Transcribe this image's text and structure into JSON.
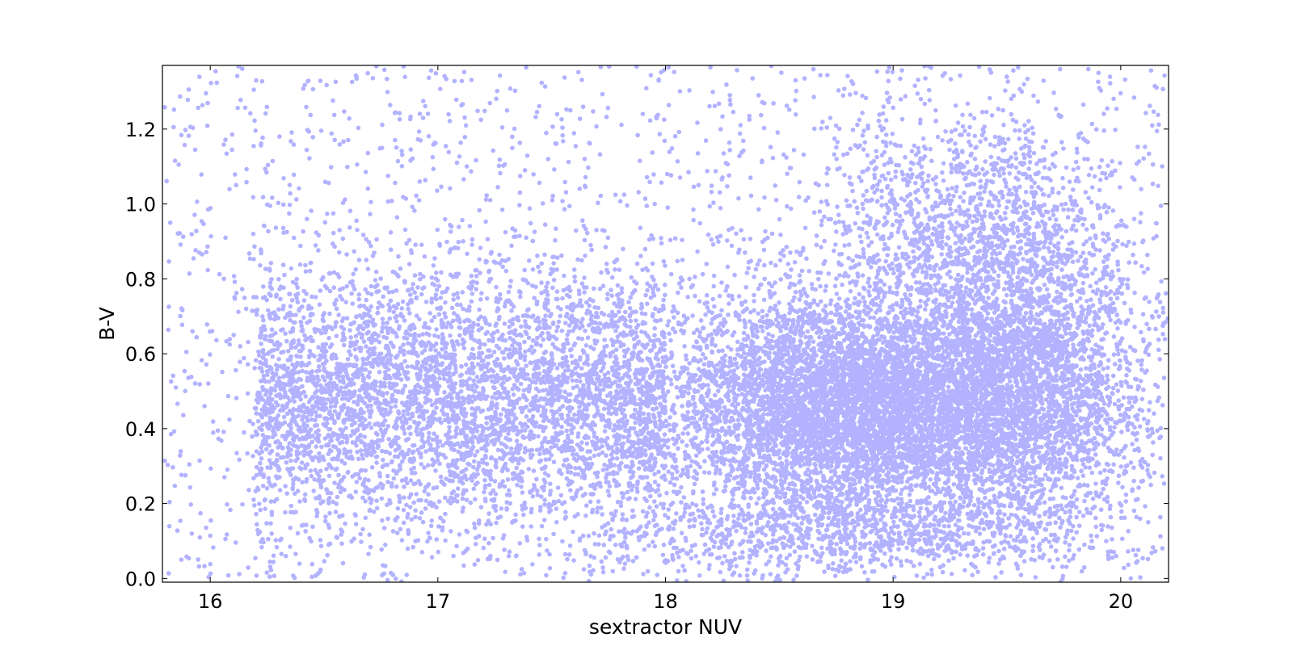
{
  "chart_data": {
    "type": "scatter",
    "title": "",
    "xlabel": "sextractor NUV",
    "ylabel": "B-V",
    "xlim": [
      15.79,
      20.21
    ],
    "ylim": [
      -0.01,
      1.37
    ],
    "xticks": [
      16,
      17,
      18,
      19,
      20
    ],
    "xtick_labels": [
      "16",
      "17",
      "18",
      "19",
      "20"
    ],
    "yticks": [
      0.0,
      0.2,
      0.4,
      0.6,
      0.8,
      1.0,
      1.2
    ],
    "ytick_labels": [
      "0.0",
      "0.2",
      "0.4",
      "0.6",
      "0.8",
      "1.0",
      "1.2"
    ],
    "grid": false,
    "legend": "none",
    "series": [
      {
        "color": "#0000ff",
        "opacity": 0.3,
        "description_of_distribution": "dense cloud of points; main clump centered near x=18.8, y=0.45; secondary broad spread from x=16 to 17.5 around y=0.3-0.7; upper extension near x=19.5, y=0.9-1.2; sparse tail toward y=0.0-0.2 and y>1.2",
        "points_sample": [
          [
            16.0,
            0.55
          ],
          [
            16.2,
            0.48
          ],
          [
            16.4,
            0.62
          ],
          [
            16.5,
            0.35
          ],
          [
            16.7,
            0.58
          ],
          [
            16.9,
            0.45
          ],
          [
            17.1,
            0.52
          ],
          [
            17.3,
            0.4
          ],
          [
            17.5,
            0.6
          ],
          [
            17.7,
            0.38
          ],
          [
            17.9,
            0.5
          ],
          [
            18.1,
            0.42
          ],
          [
            18.3,
            0.55
          ],
          [
            18.5,
            0.48
          ],
          [
            18.7,
            0.44
          ],
          [
            18.9,
            0.5
          ],
          [
            19.0,
            0.4
          ],
          [
            19.2,
            0.6
          ],
          [
            19.4,
            0.75
          ],
          [
            19.6,
            0.55
          ],
          [
            19.8,
            0.45
          ],
          [
            20.0,
            0.5
          ],
          [
            16.3,
            1.1
          ],
          [
            17.2,
            1.25
          ],
          [
            19.5,
            1.15
          ],
          [
            18.6,
            0.05
          ],
          [
            19.1,
            0.1
          ],
          [
            17.8,
            0.15
          ],
          [
            15.9,
            0.9
          ],
          [
            20.1,
            1.2
          ]
        ]
      }
    ]
  }
}
